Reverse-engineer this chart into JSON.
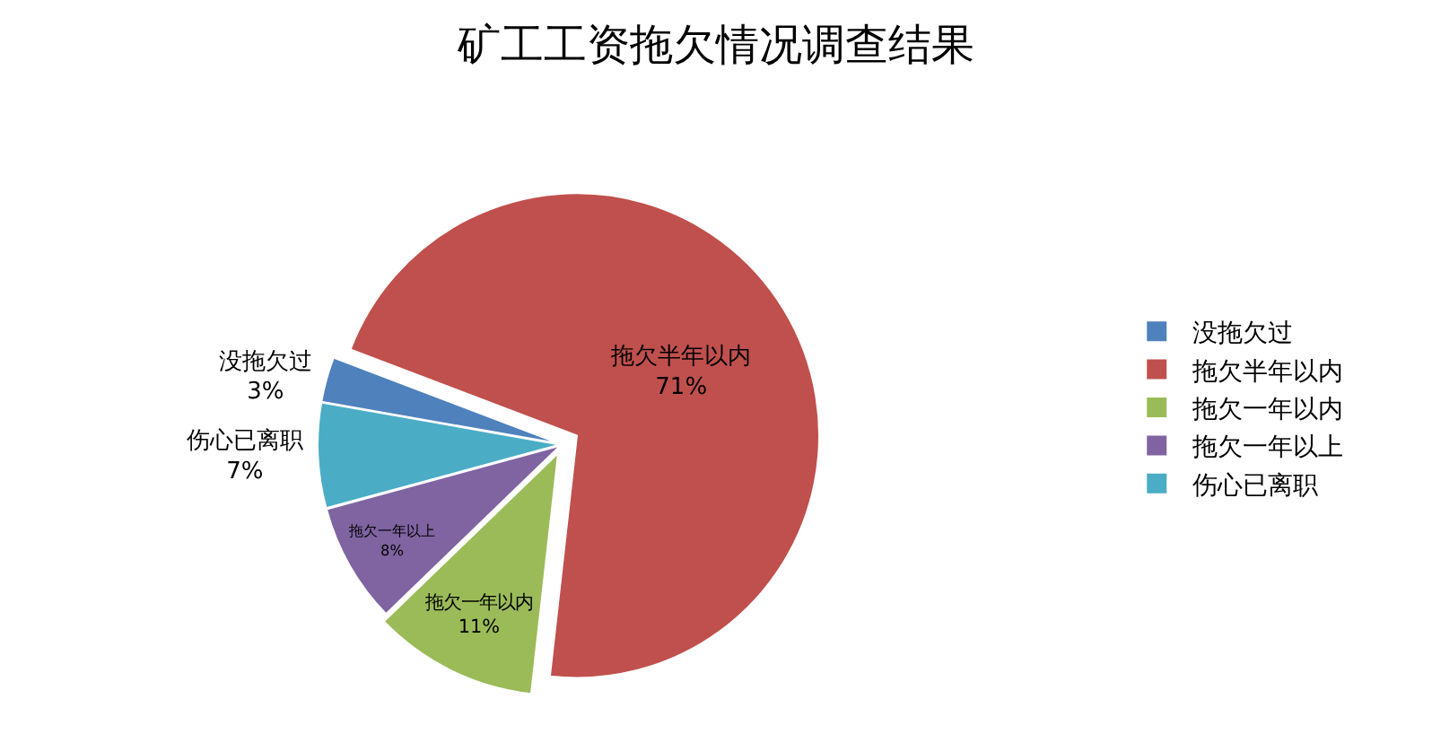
{
  "chart_data": {
    "type": "pie",
    "title": "矿工工资拖欠情况调查结果",
    "categories": [
      "没拖欠过",
      "拖欠半年以内",
      "拖欠一年以内",
      "拖欠一年以上",
      "伤心已离职"
    ],
    "values": [
      3,
      71,
      11,
      8,
      7
    ],
    "value_labels": [
      "3%",
      "71%",
      "11%",
      "8%",
      "7%"
    ],
    "colors": [
      "#4f81bd",
      "#c0504d",
      "#9bbb59",
      "#8064a2",
      "#4bacc6"
    ],
    "legend": "right"
  }
}
